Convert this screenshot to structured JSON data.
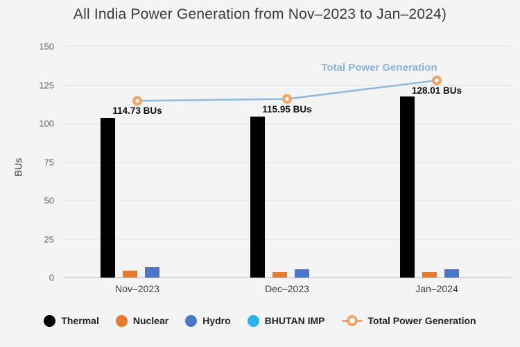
{
  "chart_data": {
    "type": "bar",
    "title": "All India Power Generation from Nov–2023 to Jan–2024)",
    "categories": [
      "Nov–2023",
      "Dec–2023",
      "Jan–2024"
    ],
    "series": [
      {
        "name": "Thermal",
        "type": "bar",
        "color": "#000000",
        "values": [
          103.5,
          104.5,
          117.5
        ]
      },
      {
        "name": "Nuclear",
        "type": "bar",
        "color": "#e67a2e",
        "values": [
          4.5,
          3.8,
          3.5
        ]
      },
      {
        "name": "Hydro",
        "type": "bar",
        "color": "#4a76c6",
        "values": [
          6.9,
          5.5,
          5.5
        ]
      },
      {
        "name": "BHUTAN IMP",
        "type": "bar",
        "color": "#29b4ef",
        "values": [
          0,
          0,
          0
        ]
      },
      {
        "name": "Total Power Generation",
        "type": "line",
        "color": "#8cbae3",
        "marker_color": "#f2a465",
        "values": [
          114.73,
          115.95,
          128.01
        ],
        "data_labels": [
          "114.73 BUs",
          "115.95 BUs",
          "128.01 BUs"
        ],
        "series_label": "Total Power Generation"
      }
    ],
    "xlabel": "",
    "ylabel": "BUs",
    "ylim": [
      0,
      150
    ],
    "yticks": [
      0,
      25,
      50,
      75,
      100,
      125,
      150
    ],
    "grid": true,
    "legend_position": "bottom"
  }
}
